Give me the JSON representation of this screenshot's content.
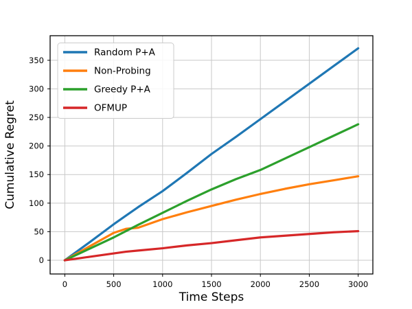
{
  "figure": {
    "background": "#ffffff"
  },
  "chart_data": {
    "type": "line",
    "title": "",
    "xlabel": "Time Steps",
    "ylabel": "Cumulative Regret",
    "x": [
      0,
      250,
      500,
      625,
      750,
      1000,
      1250,
      1500,
      1750,
      2000,
      2250,
      2500,
      2750,
      3000
    ],
    "series": [
      {
        "name": "Random P+A",
        "color": "#1f77b4",
        "values": [
          0,
          31,
          63,
          78,
          93,
          121,
          153,
          186,
          216,
          247,
          278,
          309,
          340,
          371
        ]
      },
      {
        "name": "Non-Probing",
        "color": "#ff7f0e",
        "values": [
          0,
          24,
          48,
          55,
          57,
          72,
          84,
          95,
          106,
          116,
          125,
          133,
          140,
          147
        ]
      },
      {
        "name": "Greedy P+A",
        "color": "#2ca02c",
        "values": [
          0,
          20,
          40,
          51,
          62,
          83,
          104,
          124,
          142,
          158,
          178,
          198,
          218,
          238
        ]
      },
      {
        "name": "OFMUP",
        "color": "#d62728",
        "values": [
          0,
          6,
          12,
          15,
          17,
          21,
          26,
          30,
          35,
          40,
          43,
          46,
          49,
          51
        ]
      }
    ],
    "xticks": [
      0,
      500,
      1000,
      1500,
      2000,
      2500,
      3000
    ],
    "yticks": [
      0,
      50,
      100,
      150,
      200,
      250,
      300,
      350
    ],
    "xlim": [
      -150,
      3150
    ],
    "ylim": [
      -24,
      393
    ],
    "grid": true,
    "grid_color": "#c8c8c8",
    "spine_color": "#000000",
    "legend_position": "upper left",
    "line_width": 3.2
  }
}
